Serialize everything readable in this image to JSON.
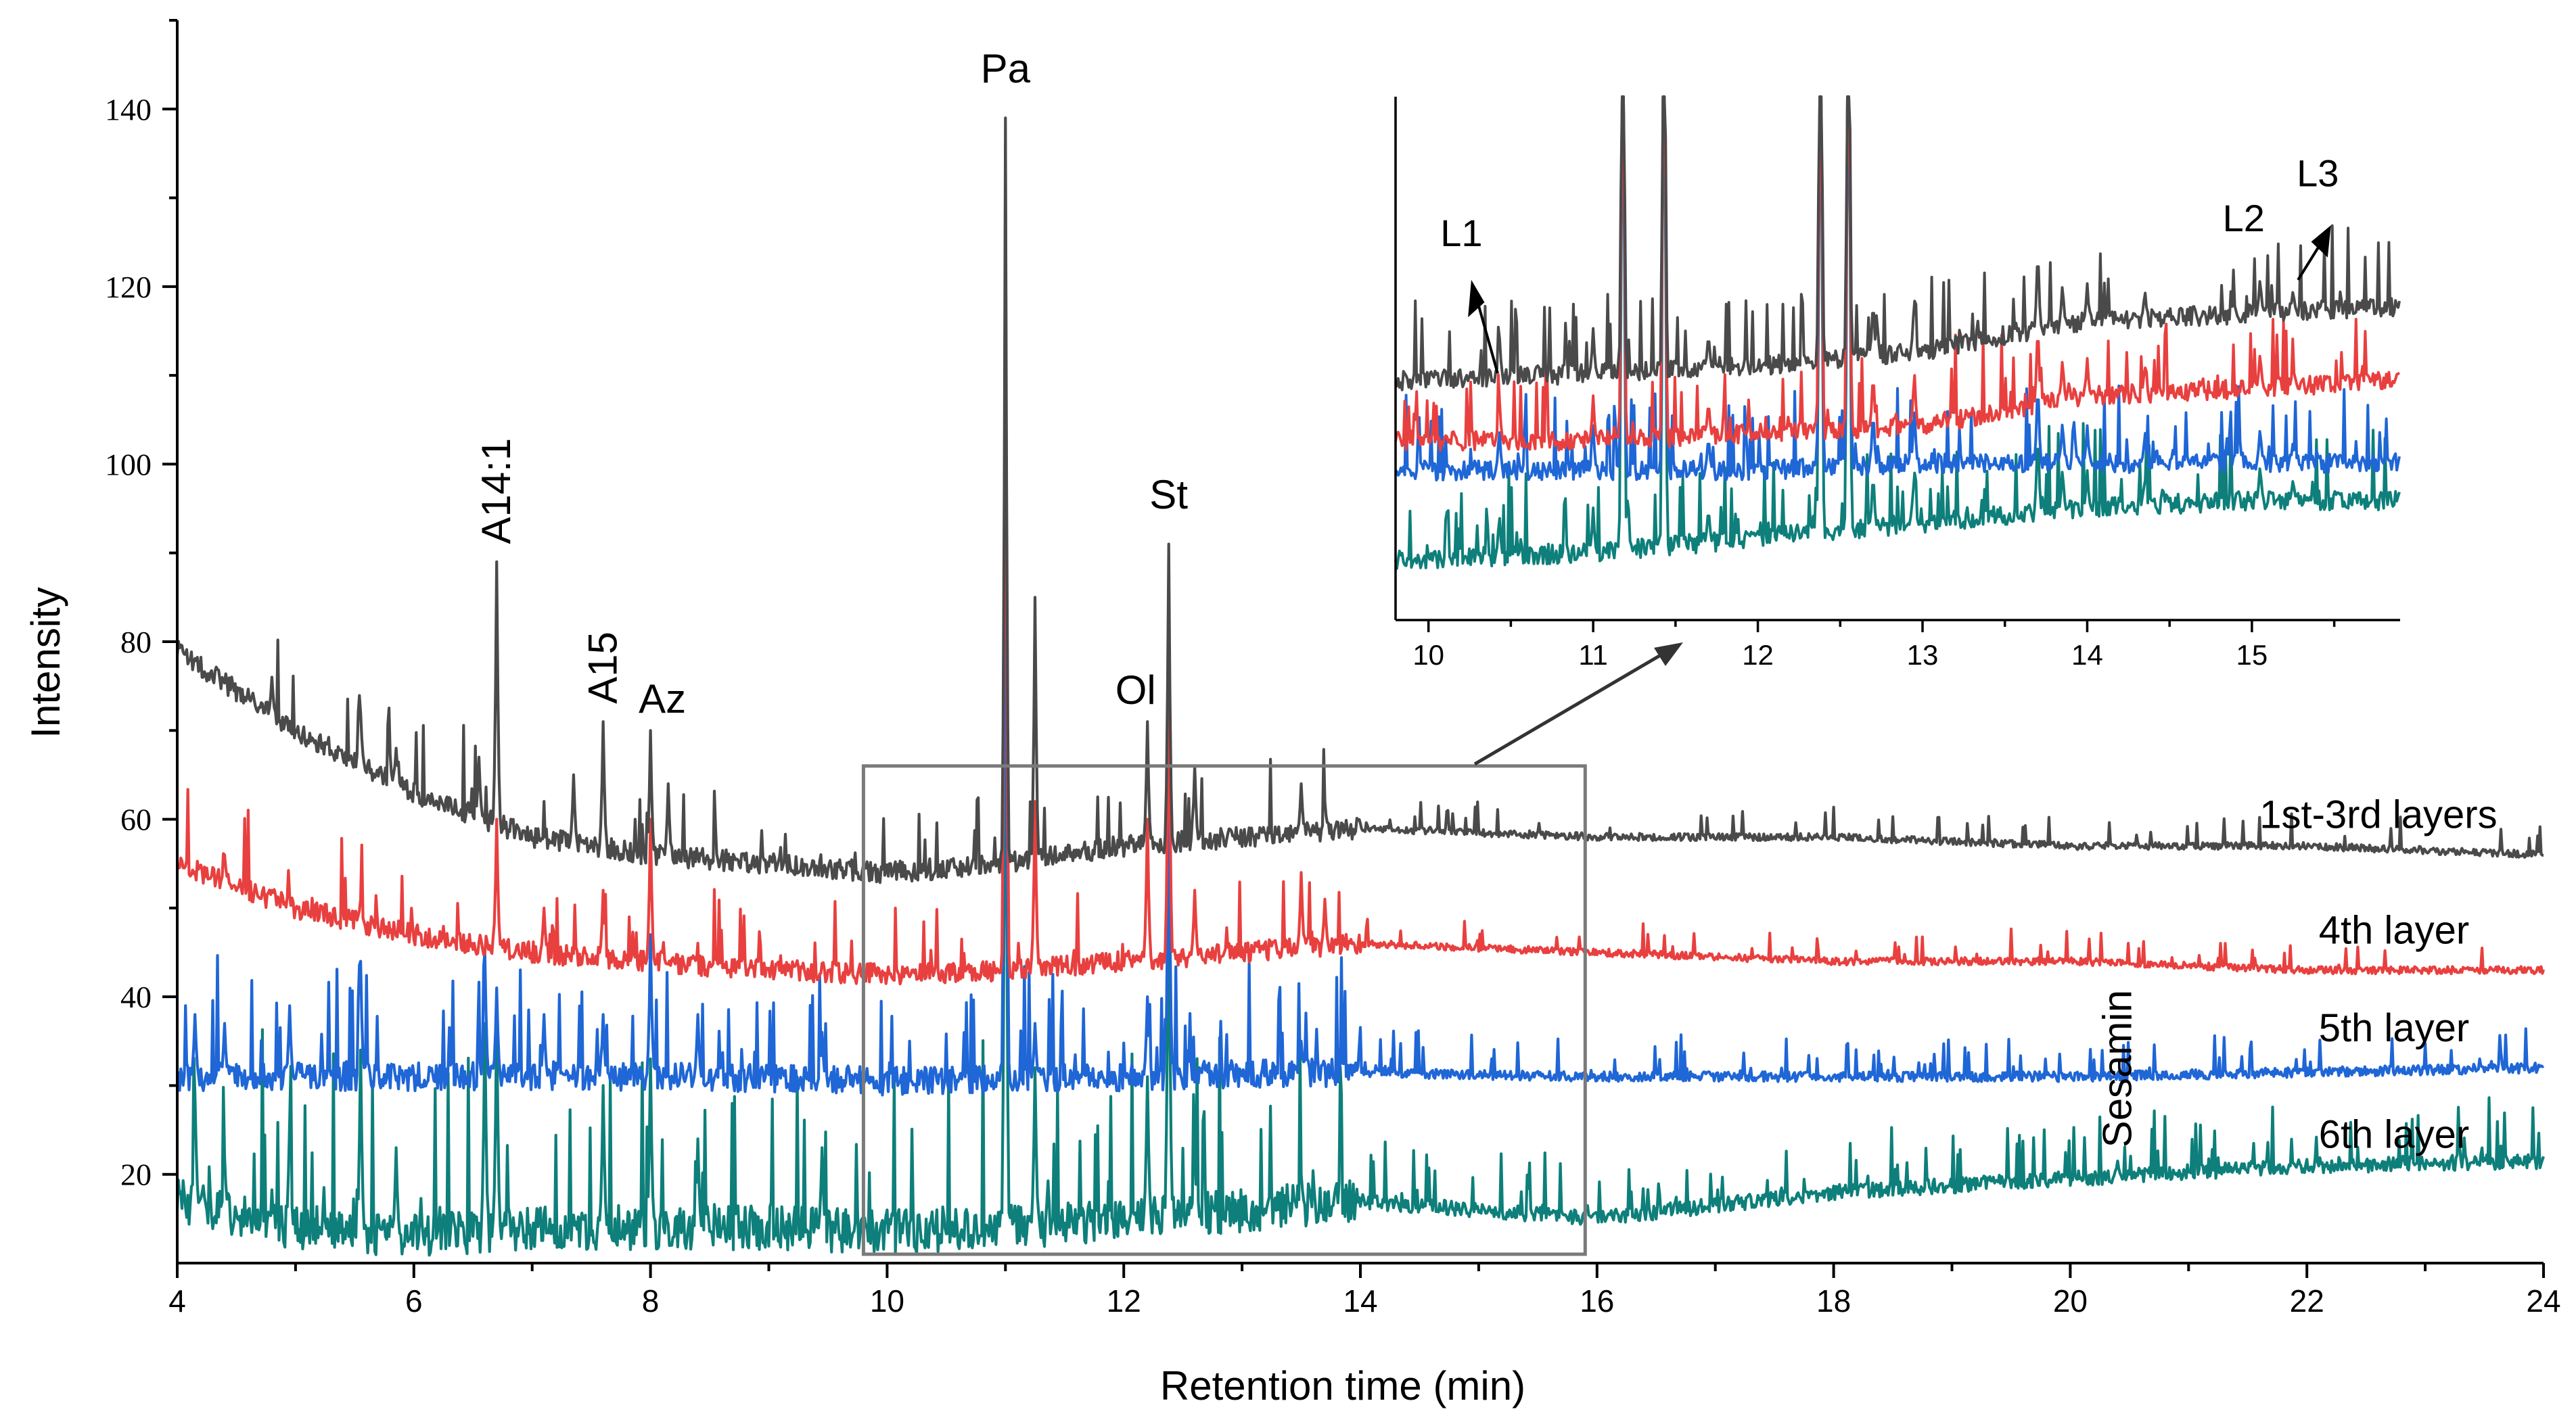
{
  "chart_data": {
    "type": "line",
    "title": "",
    "xlabel": "Retention time (min)",
    "ylabel": "Intensity",
    "xlim": [
      4,
      24
    ],
    "ylim": [
      10,
      150
    ],
    "xticks": [
      4,
      6,
      8,
      10,
      12,
      14,
      16,
      18,
      20,
      22,
      24
    ],
    "yticks": [
      20,
      40,
      60,
      80,
      100,
      120,
      140
    ],
    "colors": {
      "1st-3rd layers": "#4a4a4a",
      "4th layer": "#e8403f",
      "5th layer": "#1f66d6",
      "6th layer": "#0e7f7a"
    },
    "series": [
      {
        "name": "1st-3rd layers",
        "color": "#4a4a4a",
        "baseline": [
          [
            4,
            79
          ],
          [
            5,
            70
          ],
          [
            6,
            63
          ],
          [
            7,
            58
          ],
          [
            8,
            56
          ],
          [
            9,
            55
          ],
          [
            10,
            54
          ],
          [
            11,
            55
          ],
          [
            12,
            57
          ],
          [
            13,
            58
          ],
          [
            14,
            59
          ],
          [
            16,
            58
          ],
          [
            18,
            58
          ],
          [
            20,
            57
          ],
          [
            22,
            57
          ],
          [
            24,
            56
          ]
        ],
        "peaks": [
          [
            4.8,
            76
          ],
          [
            5.55,
            72
          ],
          [
            5.85,
            68
          ],
          [
            6.55,
            67
          ],
          [
            6.7,
            89
          ],
          [
            7.35,
            65
          ],
          [
            7.6,
            71
          ],
          [
            8.0,
            70
          ],
          [
            8.15,
            64
          ],
          [
            11.0,
            139
          ],
          [
            11.25,
            85
          ],
          [
            12.2,
            71
          ],
          [
            12.38,
            91
          ],
          [
            12.6,
            66
          ],
          [
            13.5,
            64
          ],
          [
            13.7,
            62
          ]
        ]
      },
      {
        "name": "4th layer",
        "color": "#e8403f",
        "baseline": [
          [
            4,
            55
          ],
          [
            5,
            50
          ],
          [
            6,
            47
          ],
          [
            7,
            45
          ],
          [
            8,
            44
          ],
          [
            9,
            43
          ],
          [
            10,
            42.5
          ],
          [
            11,
            43
          ],
          [
            12,
            44
          ],
          [
            13,
            45
          ],
          [
            14,
            46
          ],
          [
            16,
            45
          ],
          [
            18,
            44
          ],
          [
            20,
            44
          ],
          [
            22,
            43
          ],
          [
            24,
            43
          ]
        ],
        "peaks": [
          [
            4.4,
            56
          ],
          [
            4.8,
            52
          ],
          [
            5.55,
            51
          ],
          [
            6.7,
            60
          ],
          [
            7.1,
            50
          ],
          [
            7.6,
            52
          ],
          [
            8.0,
            60
          ],
          [
            11.0,
            136
          ],
          [
            11.25,
            62
          ],
          [
            12.2,
            60
          ],
          [
            12.38,
            80
          ],
          [
            12.6,
            52
          ],
          [
            13.5,
            54
          ],
          [
            13.7,
            51
          ]
        ]
      },
      {
        "name": "5th layer",
        "color": "#1f66d6",
        "baseline": [
          [
            4,
            31
          ],
          [
            6,
            31
          ],
          [
            8,
            31
          ],
          [
            10,
            30.5
          ],
          [
            12,
            31
          ],
          [
            14,
            31.5
          ],
          [
            16,
            31
          ],
          [
            18,
            31
          ],
          [
            20,
            31
          ],
          [
            22,
            31.5
          ],
          [
            24,
            32
          ]
        ],
        "peaks": [
          [
            4.15,
            38
          ],
          [
            4.4,
            37
          ],
          [
            4.95,
            39
          ],
          [
            5.55,
            44
          ],
          [
            6.6,
            45
          ],
          [
            6.7,
            41
          ],
          [
            7.1,
            38
          ],
          [
            7.6,
            38
          ],
          [
            8.0,
            47
          ],
          [
            8.4,
            38
          ],
          [
            9.45,
            36
          ],
          [
            11.0,
            118
          ],
          [
            11.25,
            37
          ],
          [
            12.2,
            40
          ],
          [
            12.38,
            65
          ],
          [
            13.5,
            35
          ]
        ]
      },
      {
        "name": "6th layer",
        "color": "#0e7f7a",
        "baseline": [
          [
            4,
            17
          ],
          [
            5,
            14
          ],
          [
            6,
            13
          ],
          [
            7,
            14
          ],
          [
            8,
            14
          ],
          [
            9,
            14
          ],
          [
            10,
            13.5
          ],
          [
            11,
            14
          ],
          [
            12,
            15
          ],
          [
            13,
            16
          ],
          [
            14,
            17
          ],
          [
            16,
            15
          ],
          [
            18,
            18
          ],
          [
            20,
            19.5
          ],
          [
            22,
            21
          ],
          [
            24,
            21.5
          ]
        ],
        "peaks": [
          [
            4.15,
            29
          ],
          [
            4.4,
            22
          ],
          [
            4.95,
            26
          ],
          [
            5.55,
            34
          ],
          [
            5.85,
            23
          ],
          [
            6.6,
            37
          ],
          [
            6.7,
            38
          ],
          [
            7.6,
            30
          ],
          [
            8.0,
            33
          ],
          [
            8.4,
            24
          ],
          [
            9.45,
            23
          ],
          [
            11.0,
            95
          ],
          [
            11.25,
            32
          ],
          [
            12.2,
            31
          ],
          [
            12.38,
            58
          ],
          [
            12.6,
            22
          ],
          [
            13.5,
            20
          ],
          [
            20.4,
            21.5
          ]
        ]
      }
    ],
    "annotations": [
      {
        "text": "A14:1",
        "x": 6.7,
        "y": 91,
        "rotated": true
      },
      {
        "text": "A15",
        "x": 7.6,
        "y": 73,
        "rotated": true
      },
      {
        "text": "Az",
        "x": 8.1,
        "y": 72,
        "rotated": false
      },
      {
        "text": "Pa",
        "x": 11.0,
        "y": 143,
        "rotated": false
      },
      {
        "text": "Ol",
        "x": 12.1,
        "y": 73,
        "rotated": false
      },
      {
        "text": "St",
        "x": 12.38,
        "y": 95,
        "rotated": false
      },
      {
        "text": "Sesamin",
        "x": 20.4,
        "y": 23,
        "rotated": true
      }
    ],
    "series_labels": [
      {
        "text": "1st-3rd layers",
        "x": 21.6,
        "y": 59
      },
      {
        "text": "4th layer",
        "x": 22.1,
        "y": 46
      },
      {
        "text": "5th layer",
        "x": 22.1,
        "y": 35
      },
      {
        "text": "6th layer",
        "x": 22.1,
        "y": 23
      }
    ],
    "zoom_box": {
      "xlim": [
        9.8,
        15.9
      ],
      "ylim": [
        11,
        66
      ]
    },
    "inset": {
      "xlim": [
        9.8,
        15.9
      ],
      "xticks": [
        10,
        11,
        12,
        13,
        14,
        15
      ],
      "series_baselines": [
        {
          "name": "1st-3rd layers",
          "baseline": [
            [
              9.8,
              112
            ],
            [
              11,
              113
            ],
            [
              12,
              114
            ],
            [
              13,
              116
            ],
            [
              14,
              120
            ],
            [
              15,
              121
            ],
            [
              15.9,
              122
            ]
          ]
        },
        {
          "name": "4th layer",
          "baseline": [
            [
              9.8,
              104
            ],
            [
              11,
              104
            ],
            [
              12,
              105
            ],
            [
              13,
              106
            ],
            [
              14,
              110
            ],
            [
              15,
              111
            ],
            [
              15.9,
              112
            ]
          ]
        },
        {
          "name": "5th layer",
          "baseline": [
            [
              9.8,
              100
            ],
            [
              11,
              100
            ],
            [
              12,
              100
            ],
            [
              13,
              101
            ],
            [
              14,
              101
            ],
            [
              15,
              101
            ],
            [
              15.9,
              101
            ]
          ]
        },
        {
          "name": "6th layer",
          "baseline": [
            [
              9.8,
              88
            ],
            [
              11,
              89
            ],
            [
              12,
              91
            ],
            [
              13,
              93
            ],
            [
              14,
              95
            ],
            [
              15,
              96
            ],
            [
              15.9,
              96
            ]
          ]
        }
      ],
      "annotations": [
        {
          "text": "L1",
          "x": 10.2,
          "y": 130
        },
        {
          "text": "L2",
          "x": 14.95,
          "y": 132
        },
        {
          "text": "L3",
          "x": 15.4,
          "y": 138
        }
      ]
    }
  }
}
